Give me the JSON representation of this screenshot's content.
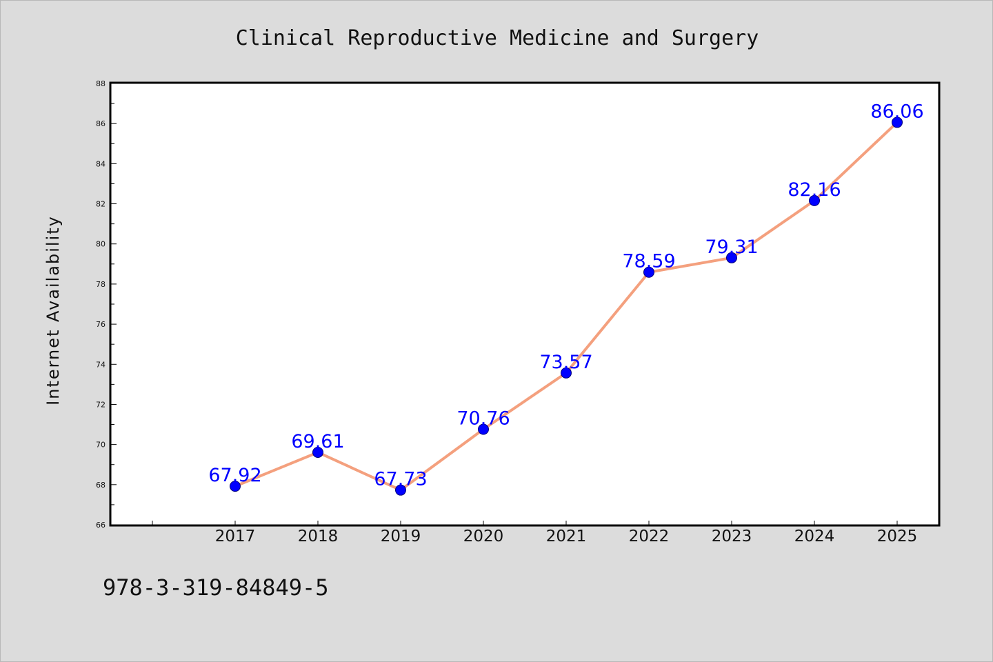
{
  "footnote": "978-3-319-84849-5",
  "colors": {
    "background": "#dcdcdc",
    "plot_background": "#ffffff",
    "line": "#f4a07e",
    "marker": "#0000ff",
    "data_label": "#0000ff"
  },
  "chart_data": {
    "type": "line",
    "title": "Clinical Reproductive Medicine and Surgery",
    "xlabel": "",
    "ylabel": "Internet Availability",
    "categories": [
      "2017",
      "2018",
      "2019",
      "2020",
      "2021",
      "2022",
      "2023",
      "2024",
      "2025"
    ],
    "series": [
      {
        "values": [
          67.92,
          69.61,
          67.73,
          70.76,
          73.57,
          78.59,
          79.31,
          82.16,
          86.06
        ],
        "value_labels": [
          "67.92",
          "69.61",
          "67.73",
          "70.76",
          "73.57",
          "78.59",
          "79.31",
          "82.16",
          "86.06"
        ]
      }
    ],
    "ylim": [
      66,
      88
    ],
    "yticks": [
      66,
      68,
      70,
      72,
      74,
      76,
      78,
      80,
      82,
      84,
      86,
      88
    ],
    "grid": false,
    "legend": "none"
  }
}
